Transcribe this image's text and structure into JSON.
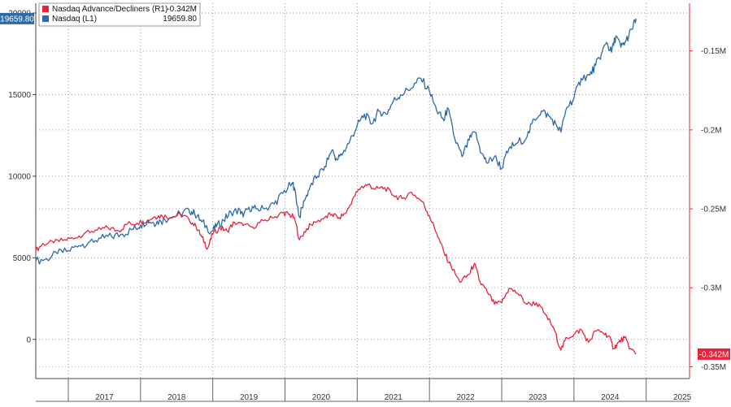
{
  "chart_data": {
    "type": "line",
    "title": "",
    "xlabel": "",
    "x_ticks": [
      "2017",
      "2018",
      "2019",
      "2020",
      "2021",
      "2022",
      "2023",
      "2024",
      "2025"
    ],
    "x_range": [
      2016.55,
      2025.6
    ],
    "left_axis": {
      "ylim": [
        -2400,
        20600
      ],
      "ticks": [
        0,
        5000,
        10000,
        15000,
        20000
      ],
      "tick_labels": [
        "0",
        "5000",
        "10000",
        "15000",
        "20000"
      ]
    },
    "right_axis": {
      "ylim": [
        -0.3575,
        -0.1198
      ],
      "ticks": [
        -0.15,
        -0.2,
        -0.25,
        -0.3,
        -0.35
      ],
      "tick_labels": [
        "-0.15M",
        "-0.2M",
        "-0.25M",
        "-0.3M",
        "-0.35M"
      ]
    },
    "legend": [
      {
        "name": "Nasdaq Advance/Decliners (R1)",
        "value": "-0.342M",
        "color": "#e8233a"
      },
      {
        "name": "Nasdaq (L1)",
        "value": "19659.80",
        "color": "#2c6aa8"
      }
    ],
    "badges": {
      "left_last": "19659.80",
      "right_last": "-0.342M"
    },
    "series": [
      {
        "name": "Nasdaq (L1)",
        "axis": "left",
        "color": "#2c6aa8",
        "points": [
          [
            2016.55,
            4800
          ],
          [
            2016.7,
            4950
          ],
          [
            2016.85,
            5250
          ],
          [
            2017.0,
            5450
          ],
          [
            2017.15,
            5750
          ],
          [
            2017.3,
            6000
          ],
          [
            2017.45,
            6200
          ],
          [
            2017.6,
            6300
          ],
          [
            2017.75,
            6450
          ],
          [
            2017.9,
            6750
          ],
          [
            2018.0,
            7000
          ],
          [
            2018.1,
            7300
          ],
          [
            2018.18,
            7150
          ],
          [
            2018.28,
            7250
          ],
          [
            2018.4,
            7450
          ],
          [
            2018.55,
            7700
          ],
          [
            2018.67,
            7950
          ],
          [
            2018.75,
            7700
          ],
          [
            2018.85,
            7200
          ],
          [
            2018.98,
            6600
          ],
          [
            2019.05,
            6900
          ],
          [
            2019.15,
            7300
          ],
          [
            2019.25,
            7800
          ],
          [
            2019.38,
            7900
          ],
          [
            2019.42,
            7500
          ],
          [
            2019.5,
            8100
          ],
          [
            2019.6,
            8000
          ],
          [
            2019.72,
            8000
          ],
          [
            2019.85,
            8300
          ],
          [
            2019.97,
            8950
          ],
          [
            2020.1,
            9600
          ],
          [
            2020.13,
            9300
          ],
          [
            2020.2,
            7500
          ],
          [
            2020.27,
            8500
          ],
          [
            2020.35,
            9400
          ],
          [
            2020.45,
            10000
          ],
          [
            2020.55,
            10600
          ],
          [
            2020.65,
            11600
          ],
          [
            2020.72,
            11000
          ],
          [
            2020.8,
            11400
          ],
          [
            2020.9,
            12200
          ],
          [
            2021.0,
            13100
          ],
          [
            2021.1,
            13800
          ],
          [
            2021.2,
            13200
          ],
          [
            2021.3,
            14000
          ],
          [
            2021.4,
            13800
          ],
          [
            2021.5,
            14600
          ],
          [
            2021.6,
            15000
          ],
          [
            2021.75,
            15400
          ],
          [
            2021.88,
            16000
          ],
          [
            2022.0,
            15200
          ],
          [
            2022.1,
            14000
          ],
          [
            2022.2,
            13400
          ],
          [
            2022.25,
            14200
          ],
          [
            2022.35,
            12300
          ],
          [
            2022.45,
            11200
          ],
          [
            2022.55,
            12200
          ],
          [
            2022.63,
            12700
          ],
          [
            2022.72,
            11400
          ],
          [
            2022.8,
            10800
          ],
          [
            2022.9,
            11200
          ],
          [
            2023.0,
            10500
          ],
          [
            2023.1,
            11700
          ],
          [
            2023.2,
            12000
          ],
          [
            2023.35,
            12400
          ],
          [
            2023.45,
            13500
          ],
          [
            2023.55,
            14000
          ],
          [
            2023.65,
            13700
          ],
          [
            2023.75,
            13200
          ],
          [
            2023.82,
            12700
          ],
          [
            2023.9,
            14200
          ],
          [
            2024.0,
            14800
          ],
          [
            2024.1,
            16000
          ],
          [
            2024.22,
            16200
          ],
          [
            2024.3,
            16800
          ],
          [
            2024.38,
            17500
          ],
          [
            2024.45,
            18200
          ],
          [
            2024.52,
            17600
          ],
          [
            2024.58,
            18600
          ],
          [
            2024.65,
            17900
          ],
          [
            2024.72,
            18300
          ],
          [
            2024.8,
            19000
          ],
          [
            2024.86,
            19659.8
          ]
        ]
      },
      {
        "name": "Nasdaq Advance/Decliners (R1)",
        "axis": "right",
        "color": "#e8233a",
        "points": [
          [
            2016.55,
            -0.2765
          ],
          [
            2016.65,
            -0.272
          ],
          [
            2016.8,
            -0.2715
          ],
          [
            2016.95,
            -0.2695
          ],
          [
            2017.1,
            -0.2685
          ],
          [
            2017.25,
            -0.2645
          ],
          [
            2017.4,
            -0.2635
          ],
          [
            2017.55,
            -0.262
          ],
          [
            2017.7,
            -0.264
          ],
          [
            2017.82,
            -0.2595
          ],
          [
            2017.95,
            -0.259
          ],
          [
            2018.1,
            -0.257
          ],
          [
            2018.2,
            -0.255
          ],
          [
            2018.3,
            -0.2545
          ],
          [
            2018.42,
            -0.2555
          ],
          [
            2018.55,
            -0.2535
          ],
          [
            2018.67,
            -0.2565
          ],
          [
            2018.77,
            -0.2615
          ],
          [
            2018.85,
            -0.268
          ],
          [
            2018.93,
            -0.275
          ],
          [
            2019.0,
            -0.266
          ],
          [
            2019.1,
            -0.262
          ],
          [
            2019.2,
            -0.264
          ],
          [
            2019.3,
            -0.2585
          ],
          [
            2019.42,
            -0.2605
          ],
          [
            2019.55,
            -0.2615
          ],
          [
            2019.7,
            -0.2575
          ],
          [
            2019.85,
            -0.2555
          ],
          [
            2019.97,
            -0.2525
          ],
          [
            2020.05,
            -0.2535
          ],
          [
            2020.13,
            -0.2555
          ],
          [
            2020.2,
            -0.2695
          ],
          [
            2020.3,
            -0.2625
          ],
          [
            2020.42,
            -0.2585
          ],
          [
            2020.55,
            -0.2555
          ],
          [
            2020.65,
            -0.2535
          ],
          [
            2020.75,
            -0.2555
          ],
          [
            2020.85,
            -0.2525
          ],
          [
            2020.95,
            -0.2425
          ],
          [
            2021.05,
            -0.2365
          ],
          [
            2021.15,
            -0.2345
          ],
          [
            2021.25,
            -0.2375
          ],
          [
            2021.38,
            -0.2365
          ],
          [
            2021.5,
            -0.2415
          ],
          [
            2021.62,
            -0.2435
          ],
          [
            2021.75,
            -0.2395
          ],
          [
            2021.9,
            -0.2455
          ],
          [
            2022.0,
            -0.2545
          ],
          [
            2022.1,
            -0.2655
          ],
          [
            2022.2,
            -0.2775
          ],
          [
            2022.3,
            -0.2865
          ],
          [
            2022.42,
            -0.2965
          ],
          [
            2022.55,
            -0.2915
          ],
          [
            2022.62,
            -0.2845
          ],
          [
            2022.7,
            -0.2965
          ],
          [
            2022.8,
            -0.3025
          ],
          [
            2022.9,
            -0.3105
          ],
          [
            2023.0,
            -0.3095
          ],
          [
            2023.1,
            -0.3005
          ],
          [
            2023.22,
            -0.3035
          ],
          [
            2023.35,
            -0.3105
          ],
          [
            2023.48,
            -0.3095
          ],
          [
            2023.6,
            -0.3165
          ],
          [
            2023.72,
            -0.3255
          ],
          [
            2023.82,
            -0.3395
          ],
          [
            2023.9,
            -0.3315
          ],
          [
            2024.0,
            -0.3295
          ],
          [
            2024.1,
            -0.3265
          ],
          [
            2024.2,
            -0.3345
          ],
          [
            2024.3,
            -0.3275
          ],
          [
            2024.4,
            -0.3285
          ],
          [
            2024.48,
            -0.3305
          ],
          [
            2024.55,
            -0.3385
          ],
          [
            2024.62,
            -0.3345
          ],
          [
            2024.7,
            -0.3315
          ],
          [
            2024.78,
            -0.3385
          ],
          [
            2024.86,
            -0.342
          ]
        ]
      }
    ]
  }
}
